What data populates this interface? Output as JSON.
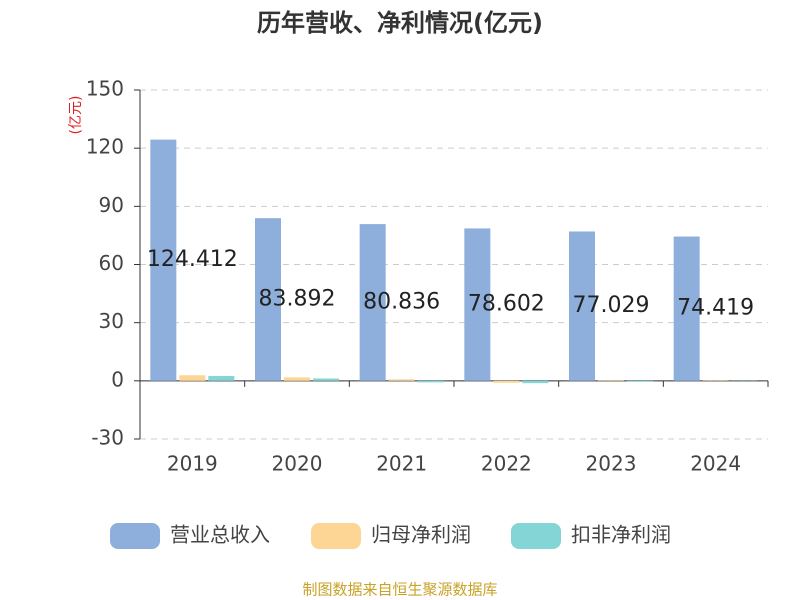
{
  "chart_data": {
    "type": "bar",
    "title": "历年营收、净利情况(亿元)",
    "y_label": "(亿元)",
    "categories": [
      "2019",
      "2020",
      "2021",
      "2022",
      "2023",
      "2024"
    ],
    "series": [
      {
        "name": "营业总收入",
        "color": "#8eaedb",
        "values": [
          124.412,
          83.892,
          80.836,
          78.602,
          77.029,
          74.419
        ],
        "show_labels": true
      },
      {
        "name": "归母净利润",
        "color": "#fdd695",
        "values": [
          2.9,
          1.8,
          0.8,
          -1.0,
          0.3,
          0.2
        ]
      },
      {
        "name": "扣非净利润",
        "color": "#83d5d6",
        "values": [
          2.5,
          1.2,
          -0.8,
          -1.2,
          -0.5,
          0.1
        ]
      }
    ],
    "ylim": [
      -30,
      150
    ],
    "yticks": [
      -30,
      0,
      30,
      60,
      90,
      120,
      150
    ],
    "grid": true,
    "legend": "bottom",
    "source": "制图数据来自恒生聚源数据库"
  }
}
